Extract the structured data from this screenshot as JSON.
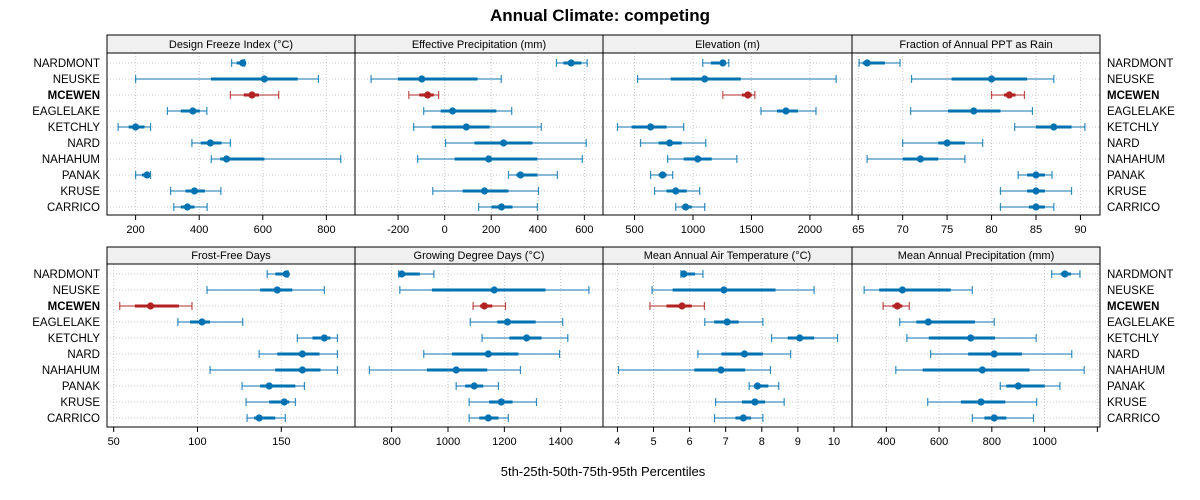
{
  "chart_data": {
    "type": "scatter",
    "subtype": "percentile-dotplot-panels",
    "title": "Annual Climate: competing",
    "xlabel": "5th-25th-50th-75th-95th Percentiles",
    "percentile_keys": [
      "p5",
      "p25",
      "p50",
      "p75",
      "p95"
    ],
    "sites": [
      "NARDMONT",
      "NEUSKE",
      "MCEWEN",
      "EAGLELAKE",
      "KETCHLY",
      "NARD",
      "NAHAHUM",
      "PANAK",
      "KRUSE",
      "CARRICO"
    ],
    "highlight_site": "MCEWEN",
    "colors": {
      "normal": "#0072B2",
      "highlight": "#B22222",
      "strip_bg": "#F0F0F0",
      "grid": "#C8C8C8",
      "frame": "#000000"
    },
    "grid": true,
    "panels": [
      {
        "title": "Design Freeze Index (°C)",
        "xlim": [
          110,
          890
        ],
        "ticks": [
          200,
          400,
          600,
          800
        ],
        "tick_labels": [
          "200",
          "400",
          "600",
          "800"
        ],
        "values": [
          [
            502,
            518,
            537,
            540,
            543
          ],
          [
            200,
            437,
            605,
            710,
            775
          ],
          [
            498,
            540,
            566,
            588,
            650
          ],
          [
            300,
            342,
            380,
            402,
            424
          ],
          [
            145,
            178,
            200,
            228,
            247
          ],
          [
            377,
            405,
            435,
            470,
            498
          ],
          [
            438,
            466,
            486,
            605,
            845
          ],
          [
            200,
            220,
            236,
            241,
            247
          ],
          [
            310,
            357,
            385,
            418,
            468
          ],
          [
            320,
            342,
            363,
            385,
            425
          ]
        ]
      },
      {
        "title": "Effective Precipitation (mm)",
        "xlim": [
          -385,
          680
        ],
        "ticks": [
          -200,
          0,
          200,
          400,
          600
        ],
        "tick_labels": [
          "-200",
          "0",
          "200",
          "400",
          "600"
        ],
        "values": [
          [
            480,
            510,
            543,
            587,
            612
          ],
          [
            -316,
            -200,
            -98,
            141,
            243
          ],
          [
            -154,
            -109,
            -73,
            -47,
            -26
          ],
          [
            -90,
            -17,
            34,
            222,
            288
          ],
          [
            -133,
            -56,
            93,
            193,
            415
          ],
          [
            4,
            128,
            253,
            377,
            608
          ],
          [
            -116,
            43,
            189,
            398,
            591
          ],
          [
            274,
            308,
            326,
            398,
            484
          ],
          [
            -51,
            77,
            171,
            274,
            403
          ],
          [
            146,
            201,
            244,
            291,
            398
          ]
        ]
      },
      {
        "title": "Elevation (m)",
        "xlim": [
          230,
          2360
        ],
        "ticks": [
          500,
          1000,
          1500,
          2000
        ],
        "tick_labels": [
          "500",
          "1000",
          "1500",
          "2000"
        ],
        "values": [
          [
            1083,
            1152,
            1255,
            1281,
            1306
          ],
          [
            526,
            809,
            1100,
            1409,
            2224
          ],
          [
            1255,
            1418,
            1469,
            1503,
            1529
          ],
          [
            1581,
            1718,
            1795,
            1898,
            2052
          ],
          [
            354,
            474,
            637,
            774,
            920
          ],
          [
            551,
            706,
            800,
            903,
            1109
          ],
          [
            783,
            920,
            1040,
            1160,
            1375
          ],
          [
            637,
            706,
            740,
            774,
            826
          ],
          [
            671,
            774,
            852,
            946,
            1057
          ],
          [
            852,
            903,
            937,
            989,
            1100
          ]
        ]
      },
      {
        "title": "Fraction of Annual PPT as Rain",
        "xlim": [
          64.3,
          92.2
        ],
        "ticks": [
          65,
          70,
          75,
          80,
          85,
          90
        ],
        "tick_labels": [
          "65",
          "70",
          "75",
          "80",
          "85",
          "90"
        ],
        "values": [
          [
            65.1,
            65.5,
            66.0,
            68.0,
            69.7
          ],
          [
            71.0,
            75.5,
            80.0,
            84.0,
            87.0
          ],
          [
            80.0,
            81.4,
            82.0,
            82.7,
            83.7
          ],
          [
            70.9,
            75.1,
            78.0,
            81.0,
            84.6
          ],
          [
            82.6,
            85.0,
            87.0,
            89.0,
            90.5
          ],
          [
            70.0,
            74.0,
            75.0,
            77.0,
            79.0
          ],
          [
            66.0,
            70.0,
            72.0,
            74.0,
            77.0
          ],
          [
            83.0,
            84.0,
            85.0,
            86.0,
            86.8
          ],
          [
            81.0,
            84.0,
            85.0,
            86.0,
            89.0
          ],
          [
            81.0,
            84.2,
            85.0,
            86.0,
            87.0
          ]
        ]
      },
      {
        "title": "Frost-Free Days",
        "xlim": [
          46,
          194
        ],
        "ticks": [
          50,
          100,
          150
        ],
        "tick_labels": [
          "50",
          "100",
          "150"
        ],
        "values": [
          [
            141.6,
            146.5,
            153.0,
            153.6,
            154.0
          ],
          [
            105.7,
            137.4,
            147.6,
            156.6,
            175.7
          ],
          [
            53.6,
            62.6,
            72.0,
            88.9,
            96.7
          ],
          [
            88.3,
            95.5,
            102.7,
            107.5,
            127.0
          ],
          [
            159.6,
            168.6,
            175.7,
            179.3,
            183.5
          ],
          [
            136.8,
            147.6,
            162.6,
            172.8,
            183.5
          ],
          [
            107.5,
            146.4,
            162.6,
            173.4,
            183.5
          ],
          [
            126.6,
            137.4,
            142.8,
            158.4,
            163.8
          ],
          [
            129.0,
            142.8,
            151.8,
            154.8,
            158.4
          ],
          [
            129.6,
            133.8,
            136.8,
            146.4,
            152.4
          ]
        ]
      },
      {
        "title": "Growing Degree Days (°C)",
        "xlim": [
          670,
          1550
        ],
        "ticks": [
          800,
          1000,
          1200,
          1400
        ],
        "tick_labels": [
          "800",
          "1000",
          "1200",
          "1400"
        ],
        "values": [
          [
            825,
            829,
            836,
            900,
            950
          ],
          [
            829,
            943,
            1164,
            1346,
            1500
          ],
          [
            1089,
            1114,
            1129,
            1157,
            1204
          ],
          [
            1079,
            1175,
            1211,
            1311,
            1407
          ],
          [
            1121,
            1218,
            1279,
            1332,
            1425
          ],
          [
            914,
            1014,
            1143,
            1250,
            1396
          ],
          [
            721,
            925,
            1029,
            1139,
            1257
          ],
          [
            1029,
            1061,
            1093,
            1125,
            1179
          ],
          [
            1075,
            1146,
            1189,
            1229,
            1314
          ],
          [
            1075,
            1111,
            1143,
            1179,
            1214
          ]
        ]
      },
      {
        "title": "Mean Annual Air Temperature (°C)",
        "xlim": [
          3.6,
          10.5
        ],
        "ticks": [
          4,
          5,
          6,
          7,
          8,
          9,
          10
        ],
        "tick_labels": [
          "4",
          "5",
          "6",
          "7",
          "8",
          "9",
          "10"
        ],
        "values": [
          [
            5.76,
            5.8,
            5.84,
            6.15,
            6.37
          ],
          [
            4.96,
            5.53,
            6.95,
            8.38,
            9.45
          ],
          [
            4.9,
            5.36,
            5.79,
            6.06,
            6.41
          ],
          [
            6.42,
            6.68,
            7.04,
            7.36,
            8.03
          ],
          [
            8.27,
            8.72,
            9.05,
            9.45,
            10.1
          ],
          [
            6.23,
            6.88,
            7.52,
            8.03,
            8.8
          ],
          [
            4.03,
            6.13,
            6.87,
            7.54,
            8.24
          ],
          [
            7.65,
            7.78,
            7.88,
            8.18,
            8.47
          ],
          [
            6.72,
            7.45,
            7.81,
            8.09,
            8.62
          ],
          [
            6.69,
            7.27,
            7.49,
            7.7,
            8.03
          ]
        ]
      },
      {
        "title": "Mean Annual Precipitation (mm)",
        "xlim": [
          270,
          1210
        ],
        "ticks": [
          400,
          600,
          800,
          1000,
          1200
        ],
        "tick_labels": [
          "400",
          "600",
          "800",
          "1000",
          ""
        ],
        "values": [
          [
            1027,
            1061,
            1077,
            1100,
            1134
          ],
          [
            316,
            373,
            461,
            644,
            726
          ],
          [
            388,
            423,
            442,
            461,
            487
          ],
          [
            451,
            514,
            559,
            736,
            809
          ],
          [
            478,
            561,
            720,
            812,
            968
          ],
          [
            568,
            710,
            809,
            914,
            1103
          ],
          [
            436,
            538,
            764,
            943,
            1150
          ],
          [
            832,
            855,
            900,
            1000,
            1058
          ],
          [
            557,
            683,
            759,
            851,
            970
          ],
          [
            726,
            772,
            809,
            855,
            958
          ]
        ]
      }
    ]
  }
}
